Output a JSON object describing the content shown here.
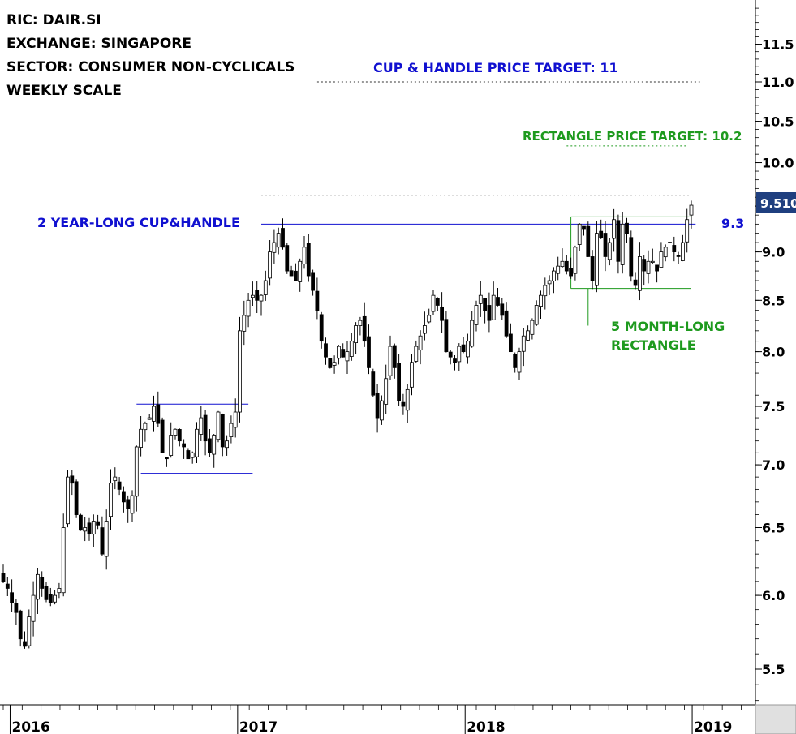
{
  "header": {
    "lines": [
      "RIC: DAIR.SI",
      "EXCHANGE: SINGAPORE",
      "SECTOR: CONSUMER NON-CYCLICALS",
      "WEEKLY SCALE"
    ]
  },
  "annotations": {
    "cup_handle_target": "CUP & HANDLE PRICE TARGET: 11",
    "rectangle_target": "RECTANGLE PRICE TARGET: 10.2",
    "cup_handle_label": "2 YEAR-LONG CUP&HANDLE",
    "breakout_level": "9.3",
    "rectangle_label_1": "5 MONTH-LONG",
    "rectangle_label_2": "RECTANGLE",
    "last_price": "9.510"
  },
  "colors": {
    "blue": "#1010d0",
    "green": "#1e9a1e",
    "price_tag_bg": "#1f3f7f",
    "candle": "#000000",
    "dotted": "#555555"
  },
  "chart_data": {
    "type": "candlestick",
    "title": "",
    "scale": "log",
    "frequency": "weekly",
    "y_ticks": [
      5.5,
      6.0,
      6.5,
      7.0,
      7.5,
      8.0,
      8.5,
      9.0,
      9.5,
      10.0,
      10.5,
      11.0,
      11.5
    ],
    "y_tick_labels": [
      "5.5",
      "6.0",
      "6.5",
      "7.0",
      "7.5",
      "8.0",
      "8.5",
      "9.0",
      "9.5",
      "10.0",
      "10.5",
      "11.0",
      "11.5"
    ],
    "x_labels": [
      {
        "label": "2016",
        "week": 1.6
      },
      {
        "label": "2017",
        "week": 54.5
      },
      {
        "label": "2018",
        "week": 107.4
      },
      {
        "label": "2019",
        "week": 160.2
      }
    ],
    "levels": [
      {
        "name": "cup_handle_target",
        "value": 11.0,
        "from_week": 73,
        "to_week": 162,
        "style": "dotted",
        "color": "#333333"
      },
      {
        "name": "rectangle_target",
        "value": 10.2,
        "from_week": 131,
        "to_week": 159,
        "style": "dotted",
        "color": "#1e9a1e"
      },
      {
        "name": "recent_high",
        "value": 9.62,
        "from_week": 60,
        "to_week": 160,
        "style": "dotted",
        "color": "#bbbbbb"
      },
      {
        "name": "cup_handle_neckline",
        "value": 9.3,
        "from_week": 60,
        "to_week": 161,
        "style": "solid",
        "color": "#1010d0"
      },
      {
        "name": "rectangle_top",
        "value": 9.38,
        "from_week": 132,
        "to_week": 160,
        "style": "solid",
        "color": "#1e9a1e"
      },
      {
        "name": "rectangle_bottom",
        "value": 8.62,
        "from_week": 132,
        "to_week": 160,
        "style": "solid",
        "color": "#1e9a1e"
      },
      {
        "name": "consolidation_top",
        "value": 7.52,
        "from_week": 31,
        "to_week": 57,
        "style": "solid",
        "color": "#1010d0"
      },
      {
        "name": "consolidation_bottom",
        "value": 6.93,
        "from_week": 32,
        "to_week": 58,
        "style": "solid",
        "color": "#1010d0"
      }
    ],
    "weekly_close": [
      6.1,
      6.05,
      5.95,
      5.88,
      5.7,
      5.65,
      5.85,
      6.0,
      6.15,
      6.05,
      5.97,
      5.95,
      6.0,
      6.05,
      6.5,
      6.9,
      6.85,
      6.6,
      6.48,
      6.5,
      6.45,
      6.55,
      6.52,
      6.3,
      6.55,
      6.85,
      6.9,
      6.8,
      6.7,
      6.65,
      6.75,
      7.15,
      7.3,
      7.35,
      7.4,
      7.5,
      7.35,
      7.1,
      7.05,
      7.25,
      7.3,
      7.2,
      7.15,
      7.05,
      7.1,
      7.3,
      7.4,
      7.2,
      7.1,
      7.25,
      7.45,
      7.15,
      7.2,
      7.35,
      7.45,
      8.2,
      8.35,
      8.5,
      8.55,
      8.5,
      8.55,
      8.7,
      9.0,
      9.1,
      9.2,
      9.05,
      8.8,
      8.75,
      8.7,
      8.9,
      9.05,
      8.75,
      8.6,
      8.4,
      8.1,
      7.95,
      7.85,
      7.9,
      8.05,
      7.95,
      8.0,
      8.1,
      8.25,
      8.3,
      8.1,
      7.85,
      7.6,
      7.4,
      7.55,
      7.75,
      8.05,
      7.85,
      7.55,
      7.5,
      7.65,
      7.9,
      8.05,
      8.15,
      8.25,
      8.35,
      8.55,
      8.45,
      8.3,
      8.0,
      7.95,
      7.9,
      8.05,
      8.0,
      8.1,
      8.3,
      8.45,
      8.55,
      8.4,
      8.3,
      8.55,
      8.45,
      8.35,
      8.15,
      8.0,
      7.85,
      8.0,
      8.15,
      8.2,
      8.3,
      8.45,
      8.55,
      8.65,
      8.7,
      8.8,
      8.85,
      8.9,
      8.8,
      8.75,
      9.05,
      9.3,
      9.25,
      8.95,
      8.7,
      9.2,
      9.15,
      8.95,
      9.1,
      9.35,
      8.9,
      9.3,
      9.2,
      8.75,
      8.65,
      8.95,
      8.8,
      8.9,
      8.9,
      8.8,
      9.0,
      9.05,
      9.1,
      9.0,
      8.95,
      9.1,
      9.35,
      9.51
    ],
    "last_price": 9.51,
    "xlabel": "",
    "ylabel": ""
  }
}
